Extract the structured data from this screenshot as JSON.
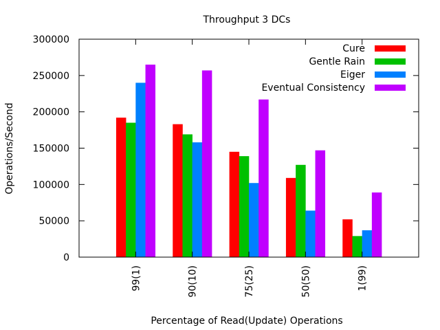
{
  "chart_data": {
    "type": "bar",
    "title": "Throughput 3 DCs",
    "xlabel": "Percentage of Read(Update) Operations",
    "ylabel": "Operations/Second",
    "ylim": [
      0,
      300000
    ],
    "yticks": [
      "0",
      "50000",
      "100000",
      "150000",
      "200000",
      "250000",
      "300000"
    ],
    "categories": [
      "99(1)",
      "90(10)",
      "75(25)",
      "50(50)",
      "1(99)"
    ],
    "legend_position": "top-right",
    "grid": false,
    "series": [
      {
        "name": "Cure",
        "color": "#ff0000",
        "values": [
          192000,
          183000,
          145000,
          109000,
          52000
        ]
      },
      {
        "name": "Gentle Rain",
        "color": "#00c000",
        "values": [
          185000,
          169000,
          139000,
          127000,
          29000
        ]
      },
      {
        "name": "Eiger",
        "color": "#0080ff",
        "values": [
          240000,
          158000,
          102000,
          64000,
          37000
        ]
      },
      {
        "name": "Eventual Consistency",
        "color": "#c000ff",
        "values": [
          265000,
          257000,
          217000,
          147000,
          89000
        ]
      }
    ]
  }
}
